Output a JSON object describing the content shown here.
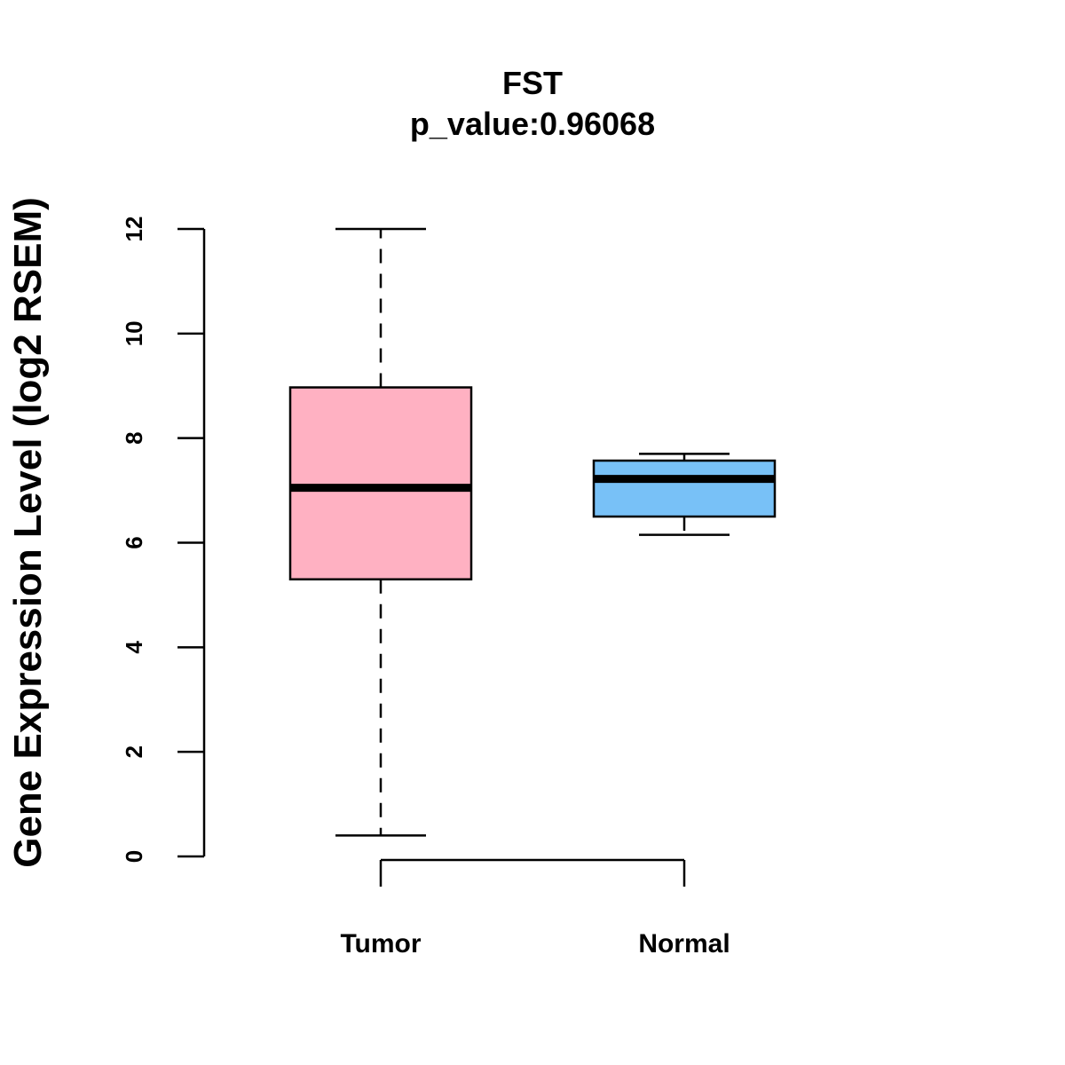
{
  "chart_data": {
    "type": "box",
    "title": "FST",
    "subtitle": "p_value:0.96068",
    "ylabel": "Gene Expression Level (log2 RSEM)",
    "xlabel": "",
    "ylim": [
      0,
      12
    ],
    "yticks": [
      0,
      2,
      4,
      6,
      8,
      10,
      12
    ],
    "grid": false,
    "categories": [
      "Tumor",
      "Normal"
    ],
    "boxes": [
      {
        "name": "Tumor",
        "min": 0.4,
        "q1": 5.3,
        "median": 7.05,
        "q3": 8.97,
        "max": 12.0,
        "color": "#FFB1C2"
      },
      {
        "name": "Normal",
        "min": 6.15,
        "q1": 6.5,
        "median": 7.22,
        "q3": 7.57,
        "max": 7.7,
        "color": "#78C1F7"
      }
    ]
  }
}
